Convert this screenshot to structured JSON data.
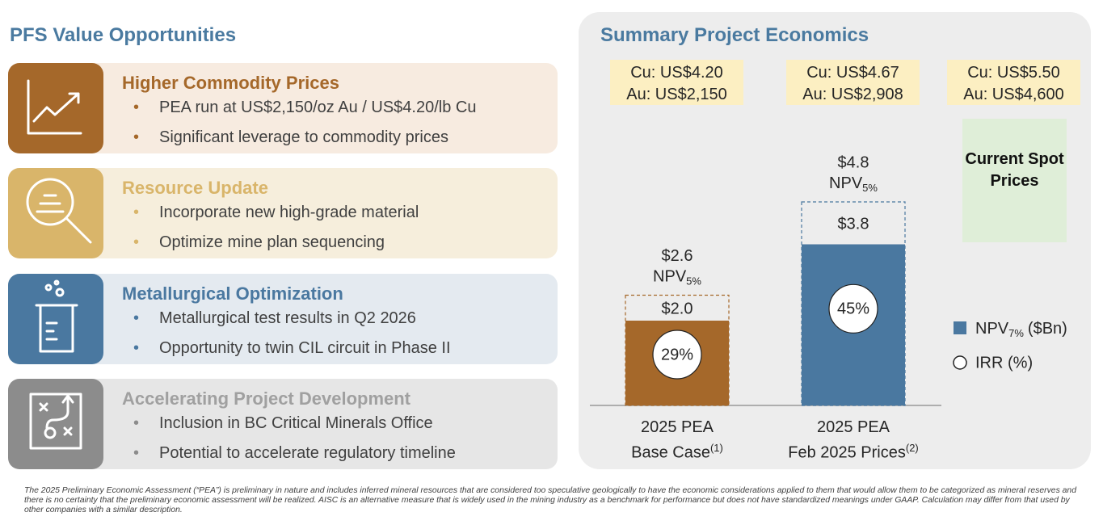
{
  "left": {
    "title": "PFS Value Opportunities",
    "cards": [
      {
        "title": "Higher Commodity Prices",
        "bullets": [
          "PEA run at US$2,150/oz Au / US$4.20/lb Cu",
          "Significant leverage to commodity prices"
        ]
      },
      {
        "title": "Resource Update",
        "bullets": [
          "Incorporate new high-grade material",
          "Optimize mine plan sequencing"
        ]
      },
      {
        "title": "Metallurgical Optimization",
        "bullets": [
          "Metallurgical test results in Q2 2026",
          "Opportunity to twin CIL circuit in Phase II"
        ]
      },
      {
        "title": "Accelerating Project Development",
        "bullets": [
          "Inclusion in BC Critical Minerals Office",
          "Potential to accelerate regulatory timeline"
        ]
      }
    ]
  },
  "chart_data": {
    "type": "bar",
    "title": "Summary Project Economics",
    "price_boxes": [
      {
        "cu": "Cu: US$4.20",
        "au": "Au: US$2,150"
      },
      {
        "cu": "Cu: US$4.67",
        "au": "Au: US$2,908"
      },
      {
        "cu": "Cu: US$5.50",
        "au": "Au: US$4,600"
      }
    ],
    "spot_note": "Current Spot Prices",
    "categories": [
      "2025 PEA Base Case",
      "2025 PEA Feb 2025 Prices"
    ],
    "category_notes": [
      "(1)",
      "(2)"
    ],
    "colors": [
      "#a5682a",
      "#4a78a0"
    ],
    "series": [
      {
        "name": "NPV",
        "name_sub": "7%",
        "name_unit": "($Bn)",
        "color": "#4a78a0",
        "values": [
          2.0,
          3.8
        ],
        "value_labels": [
          "$2.0",
          "$3.8"
        ]
      },
      {
        "name": "NPV",
        "name_sub": "5%",
        "values": [
          2.6,
          4.8
        ],
        "value_labels": [
          "$2.6",
          "$4.8"
        ]
      },
      {
        "name": "IRR (%)",
        "values": [
          29,
          45
        ],
        "value_labels": [
          "29%",
          "45%"
        ]
      }
    ]
  },
  "footnote": "The 2025 Preliminary Economic Assessment (“PEA”) is preliminary in nature and includes inferred mineral resources that are considered too speculative geologically to have the economic considerations applied to them that would allow them to be categorized as mineral reserves and there is no certainty that the preliminary economic assessment will be realized. AISC is an alternative measure that is widely used in the mining industry as a benchmark for performance but does not have standardized meanings under GAAP. Calculation may differ from that used by other companies with a similar description."
}
